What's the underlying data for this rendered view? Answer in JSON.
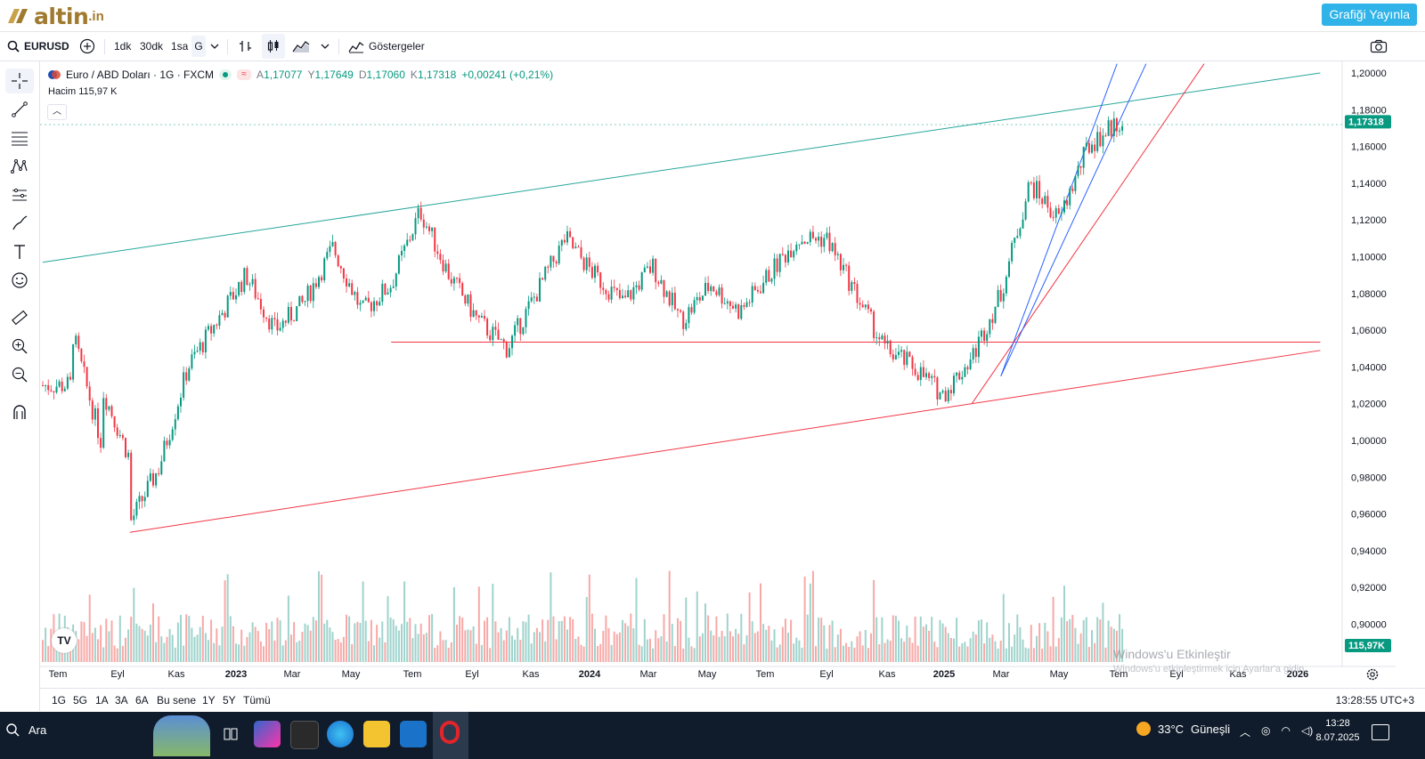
{
  "brand": {
    "name": "altin",
    "tld": ".in",
    "publish_label": "Grafiği Yayınla"
  },
  "toolbar": {
    "symbol": "EURUSD",
    "intervals": [
      "1dk",
      "30dk",
      "1sa",
      "G"
    ],
    "indicators_label": "Göstergeler"
  },
  "legend": {
    "title": "Euro / ABD Doları · 1G · FXCM",
    "o_label": "A",
    "o": "1,17077",
    "h_label": "Y",
    "h": "1,17649",
    "l_label": "D",
    "l": "1,17060",
    "c_label": "K",
    "c": "1,17318",
    "change": "+0,00241 (+0,21%)",
    "volume_label": "Hacim",
    "volume": "115,97 K"
  },
  "price_axis": {
    "ticks": [
      "1,20000",
      "1,18000",
      "1,16000",
      "1,14000",
      "1,12000",
      "1,10000",
      "1,08000",
      "1,06000",
      "1,04000",
      "1,02000",
      "1,00000",
      "0,98000",
      "0,96000",
      "0,94000",
      "0,92000",
      "0,90000"
    ],
    "last_price": "1,17318",
    "last_volume": "115,97K"
  },
  "time_axis": {
    "labels": [
      "Tem",
      "Eyl",
      "Kas",
      "2023",
      "Mar",
      "May",
      "Tem",
      "Eyl",
      "Kas",
      "2024",
      "Mar",
      "May",
      "Tem",
      "Eyl",
      "Kas",
      "2025",
      "Mar",
      "May",
      "Tem",
      "Eyl",
      "Kas",
      "2026"
    ]
  },
  "ranges": [
    "1G",
    "5G",
    "1A",
    "3A",
    "6A",
    "Bu sene",
    "1Y",
    "5Y",
    "Tümü"
  ],
  "clock": "13:28:55 UTC+3",
  "watermark": {
    "line1": "Windows'u Etkinleştir",
    "line2": "Windows'u etkinleştirmek için Ayarlar'a gidin."
  },
  "taskbar": {
    "search": "Ara",
    "weather": "33°C",
    "weather_desc": "Güneşli",
    "time": "13:28",
    "date": "8.07.2025"
  },
  "chart_data": {
    "type": "candlestick",
    "symbol": "Euro / ABD Doları",
    "ylim": [
      0.89,
      1.205
    ],
    "anchor_points": [
      {
        "x": "2022-07",
        "y": 1.03
      },
      {
        "x": "2022-07",
        "y": 1.06
      },
      {
        "x": "2022-08",
        "y": 1.0
      },
      {
        "x": "2022-08",
        "y": 1.03
      },
      {
        "x": "2022-09",
        "y": 0.99
      },
      {
        "x": "2022-09",
        "y": 0.955
      },
      {
        "x": "2022-10",
        "y": 0.985
      },
      {
        "x": "2022-11",
        "y": 1.04
      },
      {
        "x": "2022-12",
        "y": 1.065
      },
      {
        "x": "2023-01",
        "y": 1.09
      },
      {
        "x": "2023-02",
        "y": 1.06
      },
      {
        "x": "2023-03",
        "y": 1.075
      },
      {
        "x": "2023-04",
        "y": 1.105
      },
      {
        "x": "2023-05",
        "y": 1.07
      },
      {
        "x": "2023-06",
        "y": 1.085
      },
      {
        "x": "2023-07",
        "y": 1.125
      },
      {
        "x": "2023-08",
        "y": 1.09
      },
      {
        "x": "2023-09",
        "y": 1.065
      },
      {
        "x": "2023-10",
        "y": 1.05
      },
      {
        "x": "2023-11",
        "y": 1.08
      },
      {
        "x": "2023-12",
        "y": 1.11
      },
      {
        "x": "2024-01",
        "y": 1.09
      },
      {
        "x": "2024-02",
        "y": 1.075
      },
      {
        "x": "2024-03",
        "y": 1.095
      },
      {
        "x": "2024-04",
        "y": 1.065
      },
      {
        "x": "2024-05",
        "y": 1.085
      },
      {
        "x": "2024-06",
        "y": 1.07
      },
      {
        "x": "2024-07",
        "y": 1.09
      },
      {
        "x": "2024-08",
        "y": 1.11
      },
      {
        "x": "2024-09",
        "y": 1.11
      },
      {
        "x": "2024-10",
        "y": 1.08
      },
      {
        "x": "2024-11",
        "y": 1.05
      },
      {
        "x": "2024-12",
        "y": 1.04
      },
      {
        "x": "2025-01",
        "y": 1.025
      },
      {
        "x": "2025-02",
        "y": 1.045
      },
      {
        "x": "2025-03",
        "y": 1.08
      },
      {
        "x": "2025-04",
        "y": 1.14
      },
      {
        "x": "2025-05",
        "y": 1.12
      },
      {
        "x": "2025-06",
        "y": 1.16
      },
      {
        "x": "2025-07",
        "y": 1.173
      }
    ],
    "trendlines": [
      {
        "color": "#26a69a",
        "from": {
          "x": "2022-06",
          "y": 1.097
        },
        "to": {
          "x": "2026-02",
          "y": 1.2
        }
      },
      {
        "color": "#f23645",
        "from": {
          "x": "2022-09",
          "y": 0.95
        },
        "to": {
          "x": "2026-02",
          "y": 1.049
        }
      },
      {
        "color": "#f23645",
        "from": {
          "x": "2023-06",
          "y": 1.0535
        },
        "to": {
          "x": "2026-02",
          "y": 1.0535
        }
      },
      {
        "color": "#f23645",
        "from": {
          "x": "2025-02",
          "y": 1.02
        },
        "to": {
          "x": "2025-10",
          "y": 1.205
        }
      },
      {
        "color": "#2962ff",
        "from": {
          "x": "2025-03",
          "y": 1.035
        },
        "to": {
          "x": "2025-07",
          "y": 1.205
        }
      },
      {
        "color": "#2962ff",
        "from": {
          "x": "2025-03",
          "y": 1.035
        },
        "to": {
          "x": "2025-08",
          "y": 1.205
        }
      }
    ]
  },
  "colors": {
    "up": "#089981",
    "down": "#f23645",
    "volume_up": "#9fd3cc",
    "volume_down": "#f7a9a7",
    "accent": "#2fb3e8"
  }
}
